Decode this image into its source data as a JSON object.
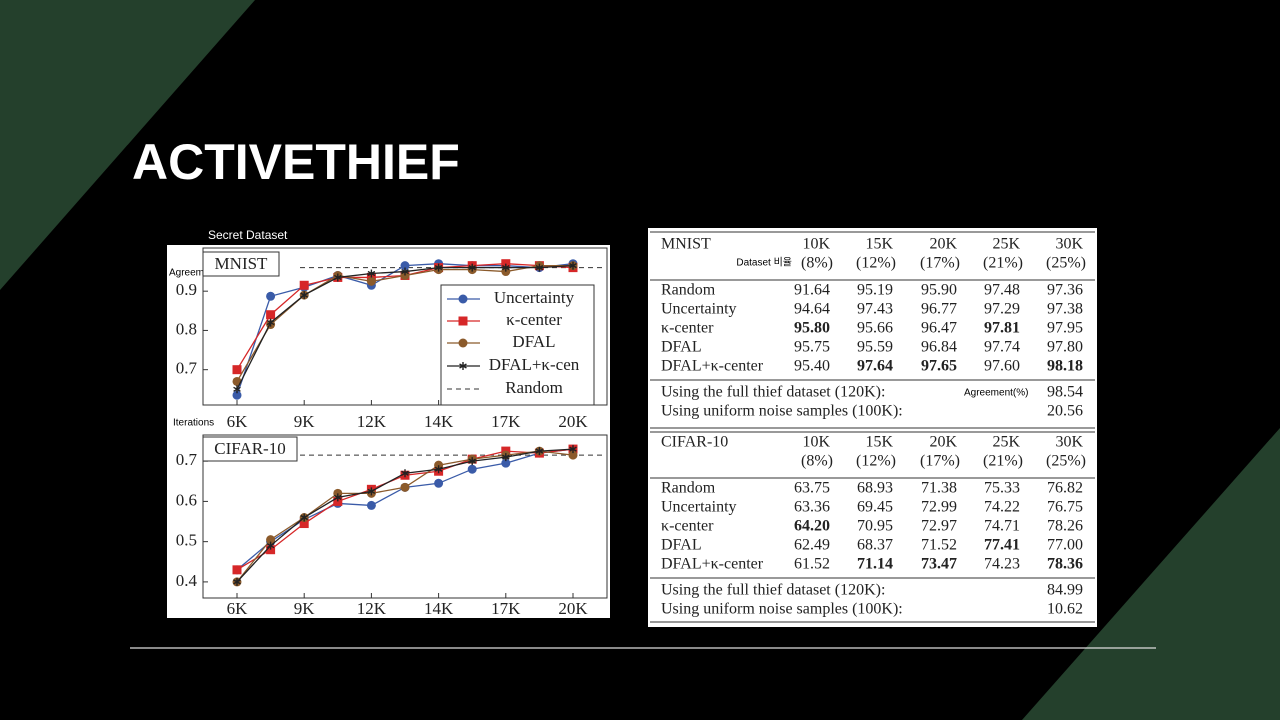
{
  "title": "ACTIVETHIEF",
  "annotations": [
    "Secret Dataset",
    "Agreement",
    "Iterations"
  ],
  "chart_data": [
    {
      "type": "line",
      "title": "MNIST",
      "categories": [
        "6K",
        null,
        "9K",
        null,
        "12K",
        null,
        "14K",
        null,
        "17K",
        null,
        "20K"
      ],
      "ylim": [
        0.61,
        1.01
      ],
      "yticks": [
        0.7,
        0.8,
        0.9
      ],
      "baseline": {
        "name": "Random",
        "value": 0.96
      },
      "legend": "right",
      "series": [
        {
          "name": "Uncertainty",
          "color": "#3a5ba8",
          "marker": "circle",
          "values": [
            0.635,
            0.887,
            0.91,
            0.94,
            0.915,
            0.965,
            0.97,
            0.965,
            0.965,
            0.96,
            0.97
          ]
        },
        {
          "name": "κ-center",
          "color": "#d62728",
          "marker": "square",
          "values": [
            0.7,
            0.84,
            0.915,
            0.935,
            0.935,
            0.94,
            0.96,
            0.965,
            0.97,
            0.965,
            0.96
          ]
        },
        {
          "name": "DFAL",
          "color": "#8b5a2b",
          "marker": "circle",
          "values": [
            0.67,
            0.815,
            0.89,
            0.94,
            0.925,
            0.94,
            0.955,
            0.955,
            0.95,
            0.965,
            0.965
          ]
        },
        {
          "name": "DFAL+κ-cen",
          "color": "#222222",
          "marker": "star",
          "values": [
            0.65,
            0.82,
            0.89,
            0.935,
            0.945,
            0.95,
            0.96,
            0.96,
            0.96,
            0.96,
            0.965
          ]
        }
      ]
    },
    {
      "type": "line",
      "title": "CIFAR-10",
      "categories": [
        "6K",
        null,
        "9K",
        null,
        "12K",
        null,
        "14K",
        null,
        "17K",
        null,
        "20K"
      ],
      "ylim": [
        0.36,
        0.765
      ],
      "yticks": [
        0.4,
        0.5,
        0.6,
        0.7
      ],
      "baseline": {
        "value": 0.715
      },
      "series": [
        {
          "color": "#3a5ba8",
          "marker": "circle",
          "values": [
            0.43,
            0.5,
            0.555,
            0.595,
            0.59,
            0.635,
            0.645,
            0.68,
            0.695,
            0.72,
            0.73
          ]
        },
        {
          "color": "#d62728",
          "marker": "square",
          "values": [
            0.43,
            0.48,
            0.545,
            0.6,
            0.63,
            0.665,
            0.675,
            0.705,
            0.725,
            0.72,
            0.73
          ]
        },
        {
          "color": "#8b5a2b",
          "marker": "circle",
          "values": [
            0.4,
            0.505,
            0.56,
            0.62,
            0.62,
            0.635,
            0.69,
            0.705,
            0.715,
            0.725,
            0.715
          ]
        },
        {
          "color": "#222222",
          "marker": "star",
          "values": [
            0.4,
            0.49,
            0.56,
            0.61,
            0.625,
            0.67,
            0.68,
            0.7,
            0.71,
            0.725,
            0.73
          ]
        }
      ]
    }
  ],
  "table": {
    "notes": [
      "Dataset 비율",
      "Agreement(%)"
    ],
    "sections": [
      {
        "header": [
          "MNIST",
          "10K",
          "15K",
          "20K",
          "25K",
          "30K"
        ],
        "subheader": [
          "(8%)",
          "(12%)",
          "(17%)",
          "(21%)",
          "(25%)"
        ],
        "rows": [
          [
            "Random",
            "91.64",
            "95.19",
            "95.90",
            "97.48",
            "97.36"
          ],
          [
            "Uncertainty",
            "94.64",
            "97.43",
            "96.77",
            "97.29",
            "97.38"
          ],
          [
            "κ-center",
            "95.80",
            "95.66",
            "96.47",
            "97.81",
            "97.95"
          ],
          [
            "DFAL",
            "95.75",
            "95.59",
            "96.84",
            "97.74",
            "97.80"
          ],
          [
            "DFAL+κ-center",
            "95.40",
            "97.64",
            "97.65",
            "97.60",
            "98.18"
          ]
        ],
        "bold": [
          [
            2,
            1
          ],
          [
            2,
            4
          ],
          [
            4,
            2
          ],
          [
            4,
            3
          ],
          [
            4,
            5
          ]
        ],
        "footer": [
          [
            "Using the full thief dataset (120K):",
            "98.54"
          ],
          [
            "Using uniform noise samples (100K):",
            "20.56"
          ]
        ]
      },
      {
        "header": [
          "CIFAR-10",
          "10K",
          "15K",
          "20K",
          "25K",
          "30K"
        ],
        "subheader": [
          "(8%)",
          "(12%)",
          "(17%)",
          "(21%)",
          "(25%)"
        ],
        "rows": [
          [
            "Random",
            "63.75",
            "68.93",
            "71.38",
            "75.33",
            "76.82"
          ],
          [
            "Uncertainty",
            "63.36",
            "69.45",
            "72.99",
            "74.22",
            "76.75"
          ],
          [
            "κ-center",
            "64.20",
            "70.95",
            "72.97",
            "74.71",
            "78.26"
          ],
          [
            "DFAL",
            "62.49",
            "68.37",
            "71.52",
            "77.41",
            "77.00"
          ],
          [
            "DFAL+κ-center",
            "61.52",
            "71.14",
            "73.47",
            "74.23",
            "78.36"
          ]
        ],
        "bold": [
          [
            2,
            1
          ],
          [
            3,
            4
          ],
          [
            4,
            2
          ],
          [
            4,
            3
          ],
          [
            4,
            5
          ]
        ],
        "footer": [
          [
            "Using the full thief dataset (120K):",
            "84.99"
          ],
          [
            "Using uniform noise samples (100K):",
            "10.62"
          ]
        ]
      }
    ]
  }
}
